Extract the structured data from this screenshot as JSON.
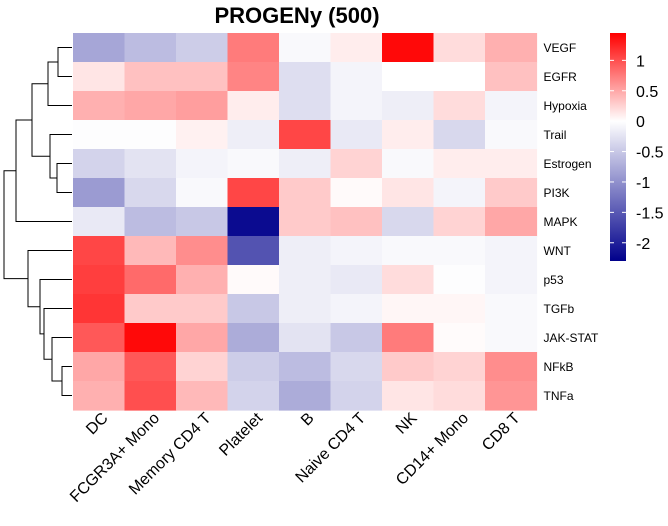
{
  "chart_data": {
    "type": "heatmap",
    "title": "PROGENy (500)",
    "rows": [
      "VEGF",
      "EGFR",
      "Hypoxia",
      "Trail",
      "Estrogen",
      "PI3K",
      "MAPK",
      "WNT",
      "p53",
      "TGFb",
      "JAK-STAT",
      "NFkB",
      "TNFa"
    ],
    "columns": [
      "DC",
      "FCGR3A+ Mono",
      "Memory CD4 T",
      "Platelet",
      "B",
      "Naive CD4 T",
      "NK",
      "CD14+ Mono",
      "CD8 T"
    ],
    "values": [
      [
        -0.8,
        -0.6,
        -0.45,
        0.75,
        -0.05,
        0.1,
        1.4,
        0.2,
        0.45
      ],
      [
        0.15,
        0.35,
        0.35,
        0.7,
        -0.3,
        -0.1,
        0.0,
        0.0,
        0.35
      ],
      [
        0.45,
        0.5,
        0.55,
        0.1,
        -0.3,
        -0.1,
        -0.15,
        0.2,
        -0.1
      ],
      [
        -0.02,
        -0.02,
        0.08,
        -0.15,
        1.05,
        -0.2,
        0.1,
        -0.35,
        -0.05
      ],
      [
        -0.4,
        -0.25,
        -0.1,
        -0.05,
        -0.15,
        0.25,
        -0.05,
        0.1,
        0.1
      ],
      [
        -0.9,
        -0.35,
        -0.05,
        1.05,
        0.3,
        0.03,
        0.15,
        -0.1,
        0.3
      ],
      [
        -0.2,
        -0.6,
        -0.5,
        -2.2,
        0.3,
        0.35,
        -0.35,
        0.25,
        0.5
      ],
      [
        1.05,
        0.4,
        0.65,
        -1.55,
        -0.15,
        -0.1,
        -0.05,
        -0.05,
        -0.1
      ],
      [
        1.1,
        0.85,
        0.45,
        0.03,
        -0.15,
        -0.2,
        0.2,
        -0.02,
        -0.1
      ],
      [
        1.15,
        0.3,
        0.3,
        -0.5,
        -0.15,
        -0.1,
        0.05,
        0.05,
        -0.05
      ],
      [
        0.95,
        1.4,
        0.5,
        -0.75,
        -0.25,
        -0.5,
        0.75,
        0.02,
        -0.05
      ],
      [
        0.5,
        0.95,
        0.25,
        -0.45,
        -0.6,
        -0.35,
        0.3,
        0.25,
        0.65
      ],
      [
        0.45,
        1.0,
        0.4,
        -0.4,
        -0.75,
        -0.4,
        0.15,
        0.2,
        0.6
      ]
    ],
    "color_scale": {
      "low": "#00008B",
      "mid": "#FFFFFF",
      "high": "#FF0000",
      "domain": [
        -2.3,
        0,
        1.45
      ],
      "ticks": [
        1,
        0.5,
        0,
        -0.5,
        -1,
        -1.5,
        -2
      ],
      "tick_labels": [
        "1",
        "0.5",
        "0",
        "-0.5",
        "-1",
        "-1.5",
        "-2"
      ]
    },
    "row_dendrogram": true,
    "legend_position": "right",
    "grid": false
  }
}
